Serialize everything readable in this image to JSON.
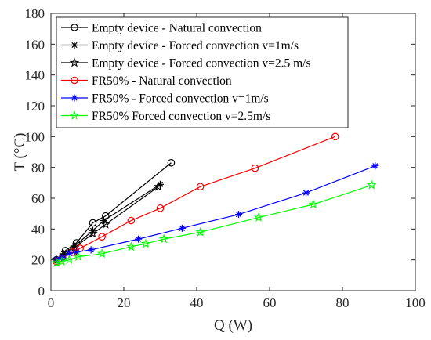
{
  "chart_data": {
    "type": "line",
    "xlabel": "Q (W)",
    "ylabel": "T (°C)",
    "xlim": [
      0,
      100
    ],
    "ylim": [
      0,
      180
    ],
    "xticks": [
      "0",
      "20",
      "40",
      "60",
      "80",
      "100"
    ],
    "yticks": [
      "0",
      "20",
      "40",
      "60",
      "80",
      "100",
      "120",
      "140",
      "160",
      "180"
    ],
    "grid": false,
    "legend_position": "top-left",
    "series": [
      {
        "name": "Empty device - Natural convection",
        "color": "#000000",
        "marker": "circle",
        "x": [
          1.5,
          4,
          7,
          11.5,
          15,
          33
        ],
        "y": [
          20,
          26,
          31,
          44,
          48.5,
          83
        ]
      },
      {
        "name": "Empty device - Forced convection v=1m/s",
        "color": "#000000",
        "marker": "asterisk",
        "x": [
          1.5,
          3.5,
          6.5,
          11.5,
          14.5,
          30
        ],
        "y": [
          20,
          24,
          29,
          39,
          45.5,
          69
        ]
      },
      {
        "name": "Empty device - Forced convection v=2.5 m/s",
        "color": "#000000",
        "marker": "star",
        "x": [
          1.5,
          3.5,
          6.5,
          11.5,
          15,
          29.5
        ],
        "y": [
          20,
          23,
          28,
          37,
          43,
          67.5
        ]
      },
      {
        "name": "FR50% - Natural convection",
        "color": "#ff0000",
        "marker": "circle",
        "x": [
          1.5,
          3,
          6,
          8,
          14,
          22,
          30,
          41,
          56,
          78
        ],
        "y": [
          19,
          21,
          25,
          27.5,
          35,
          45.5,
          53.5,
          67.5,
          79.5,
          100
        ]
      },
      {
        "name": "FR50% - Forced convection v=1m/s",
        "color": "#0000ff",
        "marker": "asterisk",
        "x": [
          1.5,
          3,
          5,
          7,
          11,
          24,
          36,
          51.5,
          70,
          89
        ],
        "y": [
          20,
          21.5,
          24,
          25,
          26.5,
          33.5,
          40.5,
          49.5,
          63.5,
          81
        ]
      },
      {
        "name": "FR50% Forced convection v=2.5m/s",
        "color": "#00ff00",
        "marker": "star",
        "x": [
          1.5,
          3,
          5,
          7.5,
          14,
          22,
          26,
          31,
          41,
          57,
          72,
          88
        ],
        "y": [
          18,
          19,
          20,
          22,
          24,
          28.5,
          30.5,
          33.5,
          38,
          47.5,
          56,
          68.5
        ]
      }
    ]
  }
}
